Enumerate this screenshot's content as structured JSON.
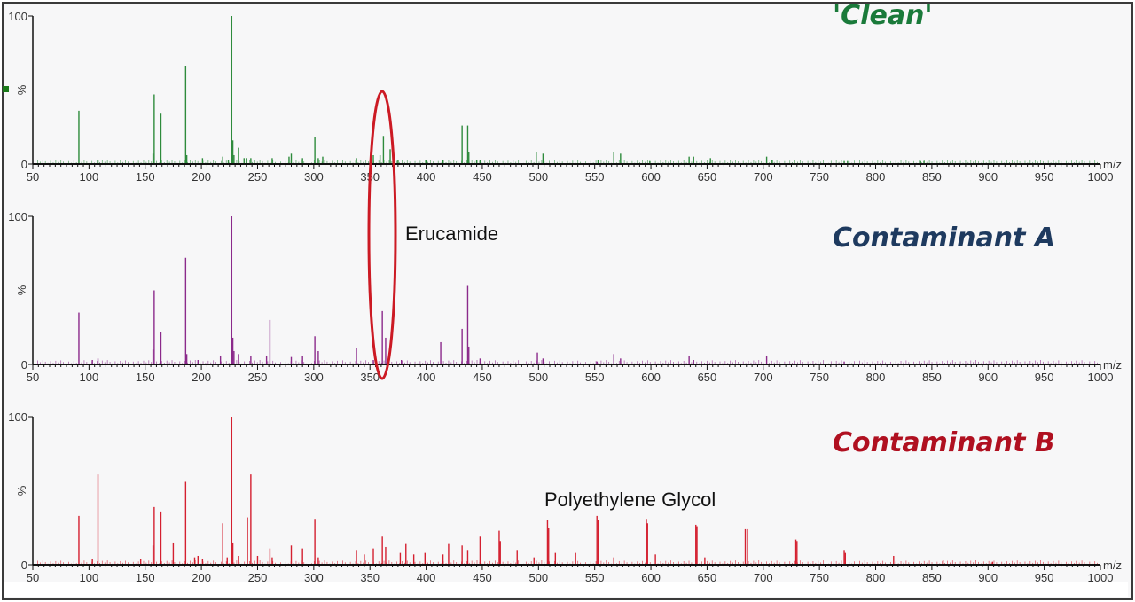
{
  "chart_data": [
    {
      "type": "bar",
      "title": "'Clean'",
      "title_color": "#1a7a3a",
      "series_color": "#2e8b3c",
      "xlabel": "m/z",
      "ylabel": "%",
      "xlim": [
        50,
        1000
      ],
      "ylim": [
        0,
        100
      ],
      "x_ticks": [
        50,
        100,
        150,
        200,
        250,
        300,
        350,
        400,
        450,
        500,
        550,
        600,
        650,
        700,
        750,
        800,
        850,
        900,
        950,
        1000
      ],
      "y_ticks": [
        "0",
        "%",
        "100"
      ],
      "grid": false,
      "peaks": [
        {
          "x": 91,
          "y": 36
        },
        {
          "x": 108,
          "y": 3
        },
        {
          "x": 157,
          "y": 7
        },
        {
          "x": 158,
          "y": 47
        },
        {
          "x": 164,
          "y": 34
        },
        {
          "x": 186,
          "y": 66
        },
        {
          "x": 187,
          "y": 6
        },
        {
          "x": 201,
          "y": 4
        },
        {
          "x": 219,
          "y": 5
        },
        {
          "x": 224,
          "y": 3
        },
        {
          "x": 227,
          "y": 100
        },
        {
          "x": 228,
          "y": 16
        },
        {
          "x": 229,
          "y": 6
        },
        {
          "x": 233,
          "y": 11
        },
        {
          "x": 238,
          "y": 4
        },
        {
          "x": 240,
          "y": 4
        },
        {
          "x": 244,
          "y": 4
        },
        {
          "x": 263,
          "y": 4
        },
        {
          "x": 278,
          "y": 5
        },
        {
          "x": 280,
          "y": 7
        },
        {
          "x": 290,
          "y": 4
        },
        {
          "x": 301,
          "y": 18
        },
        {
          "x": 304,
          "y": 4
        },
        {
          "x": 308,
          "y": 5
        },
        {
          "x": 338,
          "y": 4
        },
        {
          "x": 353,
          "y": 6
        },
        {
          "x": 359,
          "y": 6
        },
        {
          "x": 362,
          "y": 19
        },
        {
          "x": 368,
          "y": 10
        },
        {
          "x": 375,
          "y": 3
        },
        {
          "x": 400,
          "y": 3
        },
        {
          "x": 415,
          "y": 3
        },
        {
          "x": 432,
          "y": 26
        },
        {
          "x": 437,
          "y": 26
        },
        {
          "x": 438,
          "y": 8
        },
        {
          "x": 445,
          "y": 3
        },
        {
          "x": 448,
          "y": 3
        },
        {
          "x": 498,
          "y": 8
        },
        {
          "x": 504,
          "y": 7
        },
        {
          "x": 553,
          "y": 3
        },
        {
          "x": 567,
          "y": 8
        },
        {
          "x": 573,
          "y": 7
        },
        {
          "x": 599,
          "y": 2
        },
        {
          "x": 634,
          "y": 5
        },
        {
          "x": 638,
          "y": 5
        },
        {
          "x": 653,
          "y": 4
        },
        {
          "x": 703,
          "y": 5
        },
        {
          "x": 708,
          "y": 3
        },
        {
          "x": 772,
          "y": 2
        },
        {
          "x": 775,
          "y": 2
        },
        {
          "x": 840,
          "y": 2
        },
        {
          "x": 843,
          "y": 2
        }
      ]
    },
    {
      "type": "bar",
      "title": "Contaminant A",
      "title_color": "#1e3a5f",
      "series_color": "#8b2a8b",
      "xlabel": "m/z",
      "ylabel": "%",
      "xlim": [
        50,
        1000
      ],
      "ylim": [
        0,
        100
      ],
      "x_ticks": [
        50,
        100,
        150,
        200,
        250,
        300,
        350,
        400,
        450,
        500,
        550,
        600,
        650,
        700,
        750,
        800,
        850,
        900,
        950,
        1000
      ],
      "y_ticks": [
        "0",
        "%",
        "100"
      ],
      "grid": false,
      "peaks": [
        {
          "x": 91,
          "y": 35
        },
        {
          "x": 103,
          "y": 3
        },
        {
          "x": 108,
          "y": 4
        },
        {
          "x": 157,
          "y": 10
        },
        {
          "x": 158,
          "y": 50
        },
        {
          "x": 164,
          "y": 22
        },
        {
          "x": 186,
          "y": 72
        },
        {
          "x": 187,
          "y": 7
        },
        {
          "x": 197,
          "y": 3
        },
        {
          "x": 217,
          "y": 6
        },
        {
          "x": 227,
          "y": 100
        },
        {
          "x": 228,
          "y": 18
        },
        {
          "x": 229,
          "y": 9
        },
        {
          "x": 233,
          "y": 7
        },
        {
          "x": 244,
          "y": 6
        },
        {
          "x": 258,
          "y": 6
        },
        {
          "x": 261,
          "y": 30
        },
        {
          "x": 280,
          "y": 5
        },
        {
          "x": 290,
          "y": 6
        },
        {
          "x": 301,
          "y": 19
        },
        {
          "x": 304,
          "y": 9
        },
        {
          "x": 338,
          "y": 11
        },
        {
          "x": 353,
          "y": 3
        },
        {
          "x": 361,
          "y": 36
        },
        {
          "x": 364,
          "y": 18
        },
        {
          "x": 378,
          "y": 3
        },
        {
          "x": 413,
          "y": 15
        },
        {
          "x": 432,
          "y": 24
        },
        {
          "x": 437,
          "y": 53
        },
        {
          "x": 438,
          "y": 12
        },
        {
          "x": 448,
          "y": 4
        },
        {
          "x": 499,
          "y": 8
        },
        {
          "x": 504,
          "y": 4
        },
        {
          "x": 552,
          "y": 2
        },
        {
          "x": 567,
          "y": 7
        },
        {
          "x": 573,
          "y": 4
        },
        {
          "x": 634,
          "y": 6
        },
        {
          "x": 638,
          "y": 3
        },
        {
          "x": 703,
          "y": 6
        },
        {
          "x": 772,
          "y": 2
        }
      ]
    },
    {
      "type": "bar",
      "title": "Contaminant B",
      "title_color": "#b01020",
      "series_color": "#d42030",
      "xlabel": "m/z",
      "ylabel": "%",
      "xlim": [
        50,
        1000
      ],
      "ylim": [
        0,
        100
      ],
      "x_ticks": [
        50,
        100,
        150,
        200,
        250,
        300,
        350,
        400,
        450,
        500,
        550,
        600,
        650,
        700,
        750,
        800,
        850,
        900,
        950,
        1000
      ],
      "y_ticks": [
        "0",
        "%",
        "100"
      ],
      "grid": false,
      "peaks": [
        {
          "x": 91,
          "y": 33
        },
        {
          "x": 103,
          "y": 4
        },
        {
          "x": 108,
          "y": 61
        },
        {
          "x": 146,
          "y": 4
        },
        {
          "x": 157,
          "y": 13
        },
        {
          "x": 158,
          "y": 39
        },
        {
          "x": 164,
          "y": 36
        },
        {
          "x": 175,
          "y": 15
        },
        {
          "x": 186,
          "y": 56
        },
        {
          "x": 194,
          "y": 5
        },
        {
          "x": 197,
          "y": 6
        },
        {
          "x": 201,
          "y": 4
        },
        {
          "x": 219,
          "y": 28
        },
        {
          "x": 223,
          "y": 5
        },
        {
          "x": 227,
          "y": 100
        },
        {
          "x": 228,
          "y": 15
        },
        {
          "x": 233,
          "y": 6
        },
        {
          "x": 241,
          "y": 32
        },
        {
          "x": 244,
          "y": 61
        },
        {
          "x": 250,
          "y": 6
        },
        {
          "x": 261,
          "y": 11
        },
        {
          "x": 263,
          "y": 5
        },
        {
          "x": 280,
          "y": 13
        },
        {
          "x": 290,
          "y": 11
        },
        {
          "x": 301,
          "y": 31
        },
        {
          "x": 304,
          "y": 5
        },
        {
          "x": 338,
          "y": 10
        },
        {
          "x": 345,
          "y": 7
        },
        {
          "x": 353,
          "y": 11
        },
        {
          "x": 361,
          "y": 19
        },
        {
          "x": 364,
          "y": 12
        },
        {
          "x": 377,
          "y": 8
        },
        {
          "x": 382,
          "y": 14
        },
        {
          "x": 389,
          "y": 7
        },
        {
          "x": 399,
          "y": 8
        },
        {
          "x": 415,
          "y": 7
        },
        {
          "x": 420,
          "y": 14
        },
        {
          "x": 432,
          "y": 13
        },
        {
          "x": 437,
          "y": 10
        },
        {
          "x": 448,
          "y": 19
        },
        {
          "x": 465,
          "y": 23
        },
        {
          "x": 466,
          "y": 16
        },
        {
          "x": 481,
          "y": 10
        },
        {
          "x": 496,
          "y": 5
        },
        {
          "x": 508,
          "y": 30
        },
        {
          "x": 509,
          "y": 25
        },
        {
          "x": 515,
          "y": 8
        },
        {
          "x": 552,
          "y": 33
        },
        {
          "x": 553,
          "y": 30
        },
        {
          "x": 533,
          "y": 8
        },
        {
          "x": 567,
          "y": 5
        },
        {
          "x": 596,
          "y": 31
        },
        {
          "x": 597,
          "y": 28
        },
        {
          "x": 604,
          "y": 7
        },
        {
          "x": 640,
          "y": 27
        },
        {
          "x": 641,
          "y": 26
        },
        {
          "x": 648,
          "y": 5
        },
        {
          "x": 684,
          "y": 24
        },
        {
          "x": 686,
          "y": 24
        },
        {
          "x": 729,
          "y": 17
        },
        {
          "x": 730,
          "y": 16
        },
        {
          "x": 772,
          "y": 10
        },
        {
          "x": 773,
          "y": 8
        },
        {
          "x": 816,
          "y": 6
        },
        {
          "x": 860,
          "y": 3
        },
        {
          "x": 904,
          "y": 2
        }
      ]
    }
  ],
  "panels": [
    {
      "title": "'Clean'"
    },
    {
      "title": "Contaminant A"
    },
    {
      "title": "Contaminant B"
    }
  ],
  "annotations": {
    "erucamide": "Erucamide",
    "peg": "Polyethylene Glycol"
  },
  "axis": {
    "y_top_label": "100",
    "y_mid_label": "%",
    "y_zero_label": "0",
    "x_unit_label": "m/z"
  },
  "highlight": {
    "shape": "ellipse",
    "color": "#cc1a24",
    "target_mz": 361
  },
  "marker_color": "#1a7a1a"
}
